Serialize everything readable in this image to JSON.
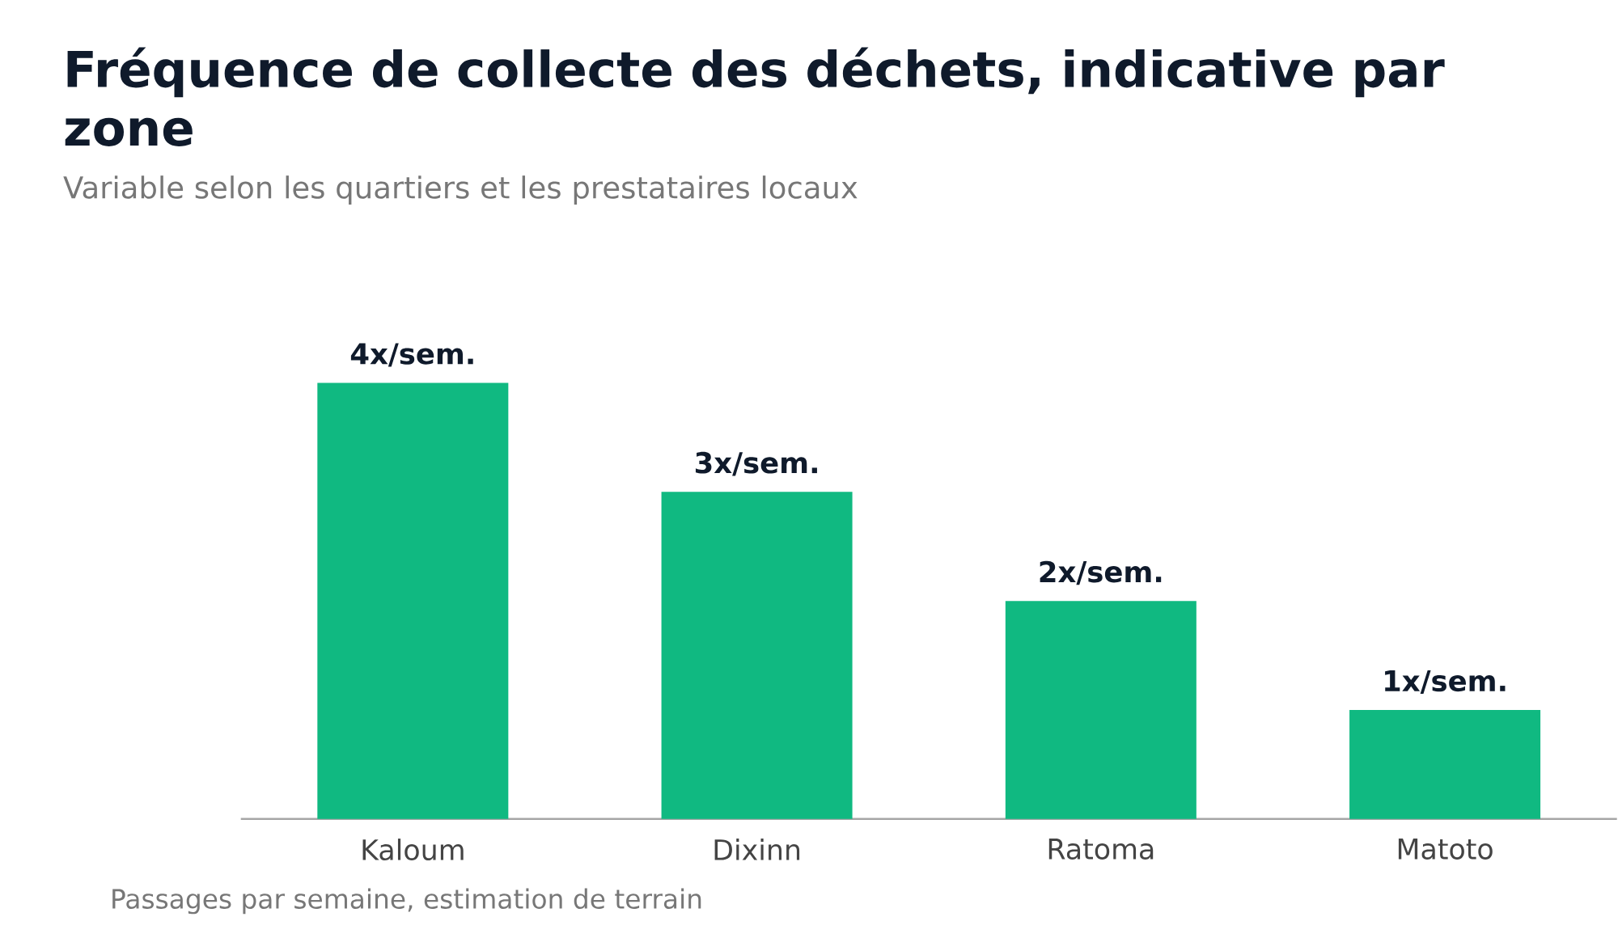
{
  "chart_data": {
    "type": "bar",
    "title": "Fréquence de collecte des déchets, indicative par zone",
    "subtitle": "Variable selon les quartiers et les prestataires locaux",
    "categories": [
      "Kaloum",
      "Dixinn",
      "Ratoma",
      "Matoto"
    ],
    "values": [
      4,
      3,
      2,
      1
    ],
    "value_labels": [
      "4x/sem.",
      "3x/sem.",
      "2x/sem.",
      "1x/sem."
    ],
    "color": "#10b981",
    "ylim": [
      0,
      4
    ],
    "tick_labels": "x",
    "annotations": [
      "Passages par semaine, estimation de terrain"
    ]
  }
}
